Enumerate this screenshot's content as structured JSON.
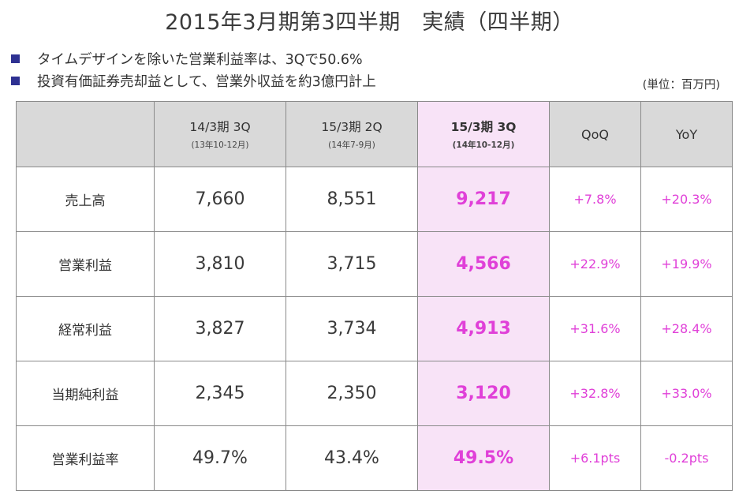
{
  "title": "2015年3月期第3四半期　実績（四半期）",
  "bullets": [
    "タイムデザインを除いた営業利益率は、3Qで50.6%",
    "投資有価証券売却益として、営業外収益を約3億円計上"
  ],
  "unit": "(単位：百万円)",
  "table": {
    "headers": [
      {
        "main": "14/3期 3Q",
        "sub": "(13年10-12月)"
      },
      {
        "main": "15/3期 2Q",
        "sub": "(14年7-9月)"
      },
      {
        "main": "15/3期  3Q",
        "sub": "(14年10-12月)"
      },
      {
        "main": "QoQ"
      },
      {
        "main": "YoY"
      }
    ],
    "rows": [
      {
        "label": "売上高",
        "v1": "7,660",
        "v2": "8,551",
        "v3": "9,217",
        "qoq": "+7.8%",
        "yoy": "+20.3%"
      },
      {
        "label": "営業利益",
        "v1": "3,810",
        "v2": "3,715",
        "v3": "4,566",
        "qoq": "+22.9%",
        "yoy": "+19.9%"
      },
      {
        "label": "経常利益",
        "v1": "3,827",
        "v2": "3,734",
        "v3": "4,913",
        "qoq": "+31.6%",
        "yoy": "+28.4%"
      },
      {
        "label": "当期純利益",
        "v1": "2,345",
        "v2": "2,350",
        "v3": "3,120",
        "qoq": "+32.8%",
        "yoy": "+33.0%"
      },
      {
        "label": "営業利益率",
        "v1": "49.7%",
        "v2": "43.4%",
        "v3": "49.5%",
        "qoq": "+6.1pts",
        "yoy": "-0.2pts"
      }
    ]
  },
  "colors": {
    "bullet": "#2e3192",
    "highlight_bg": "#f8e3f7",
    "highlight_text": "#e040d8",
    "header_bg": "#d9d9d9",
    "border": "#8a8a8a"
  }
}
